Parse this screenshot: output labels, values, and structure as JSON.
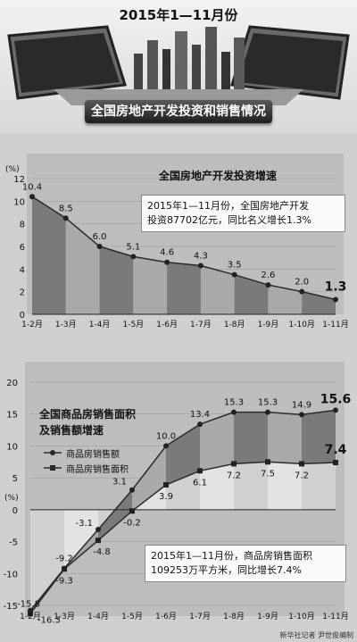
{
  "header": {
    "title": "2015年1—11月份",
    "banner": "全国房地产开发投资和销售情况"
  },
  "chart_data": [
    {
      "type": "area",
      "title": "全国房地产开发投资增速",
      "ylabel": "(%)",
      "ylim": [
        0,
        12
      ],
      "yticks": [
        0,
        2,
        4,
        6,
        8,
        10,
        12
      ],
      "categories": [
        "1-2月",
        "1-3月",
        "1-4月",
        "1-5月",
        "1-6月",
        "1-7月",
        "1-8月",
        "1-9月",
        "1-10月",
        "1-11月"
      ],
      "series": [
        {
          "values": [
            10.4,
            8.5,
            6.0,
            5.1,
            4.6,
            4.3,
            3.5,
            2.6,
            2.0,
            1.3
          ]
        }
      ],
      "note": [
        "2015年1—11月份，全国房地产开发",
        "投资87702亿元，同比名义增长1.3%"
      ]
    },
    {
      "type": "line",
      "title": [
        "全国商品房销售面积",
        "及销售额增速"
      ],
      "ylabel": "(%)",
      "ylim": [
        -15,
        20
      ],
      "yticks": [
        -15,
        -10,
        -5,
        0,
        5,
        10,
        15,
        20
      ],
      "categories": [
        "1-2月",
        "1-3月",
        "1-4月",
        "1-5月",
        "1-6月",
        "1-7月",
        "1-8月",
        "1-9月",
        "1-10月",
        "1-11月"
      ],
      "series": [
        {
          "name": "商品房销售额",
          "values": [
            -15.8,
            -9.2,
            -3.1,
            3.1,
            10.0,
            13.4,
            15.3,
            15.3,
            14.9,
            15.6
          ],
          "labels": [
            "-15.8",
            "-9.2",
            "-3.1",
            "3.1",
            "10.0",
            "13.4",
            "15.3",
            "15.3",
            "14.9",
            "15.6"
          ]
        },
        {
          "name": "商品房销售面积",
          "values": [
            -16.3,
            -9.3,
            -4.8,
            -0.2,
            3.9,
            6.1,
            7.2,
            7.5,
            7.2,
            7.4
          ],
          "labels": [
            "-16.3",
            "-9.3",
            "-4.8",
            "-0.2",
            "3.9",
            "6.1",
            "7.2",
            "7.5",
            "7.2",
            "7.4"
          ]
        }
      ],
      "note": [
        "2015年1—11月份，商品房销售面积",
        "109253万平方米，同比增长7.4%"
      ]
    }
  ],
  "footer": "新华社记者 尹世俊编制",
  "colors": {
    "area_dark": "#7a7a7a",
    "area_light": "#a9a9a9",
    "line": "#2a2a2a"
  }
}
